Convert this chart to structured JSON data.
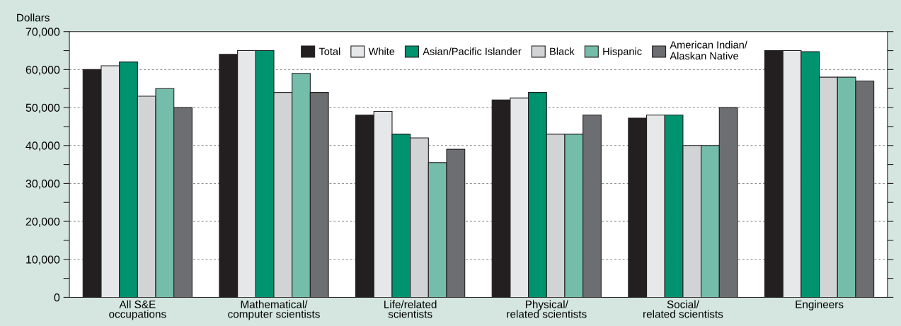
{
  "chart_data": {
    "type": "bar",
    "ylabel": "Dollars",
    "categories": [
      "All S&E\noccupations",
      "Mathematical/\ncomputer scientists",
      "Life/related\nscientists",
      "Physical/\nrelated scientists",
      "Social/\nrelated scientists",
      "Engineers"
    ],
    "series": [
      {
        "name": "Total",
        "color": "#231f20",
        "values": [
          60000,
          64000,
          48000,
          52000,
          47200,
          65000
        ]
      },
      {
        "name": "White",
        "color": "#e6e7e8",
        "values": [
          61000,
          65000,
          49000,
          52500,
          48000,
          65000
        ]
      },
      {
        "name": "Asian/Pacific Islander",
        "color": "#009370",
        "values": [
          62000,
          65000,
          43000,
          54000,
          48000,
          64700
        ]
      },
      {
        "name": "Black",
        "color": "#d1d3d4",
        "values": [
          53000,
          54000,
          42000,
          43000,
          40000,
          58000
        ]
      },
      {
        "name": "Hispanic",
        "color": "#74bdaa",
        "values": [
          55000,
          59000,
          35500,
          43000,
          40000,
          58000
        ]
      },
      {
        "name": "American Indian/\nAlaskan Native",
        "color": "#6d6e71",
        "values": [
          50000,
          54000,
          39000,
          48000,
          50000,
          57000
        ]
      }
    ],
    "ylim": [
      0,
      70000
    ],
    "yticks": [
      {
        "value": 0,
        "label": "0"
      },
      {
        "value": 5000,
        "label": null
      },
      {
        "value": 10000,
        "label": "10,000"
      },
      {
        "value": 15000,
        "label": null
      },
      {
        "value": 20000,
        "label": "20,000"
      },
      {
        "value": 25000,
        "label": null
      },
      {
        "value": 30000,
        "label": "30,000"
      },
      {
        "value": 35000,
        "label": null
      },
      {
        "value": 40000,
        "label": "40,000"
      },
      {
        "value": 45000,
        "label": null
      },
      {
        "value": 50000,
        "label": "50,000"
      },
      {
        "value": 55000,
        "label": null
      },
      {
        "value": 60000,
        "label": "60,000"
      },
      {
        "value": 65000,
        "label": null
      },
      {
        "value": 70000,
        "label": "70,000"
      }
    ],
    "grid": "y",
    "legend": "top right"
  }
}
